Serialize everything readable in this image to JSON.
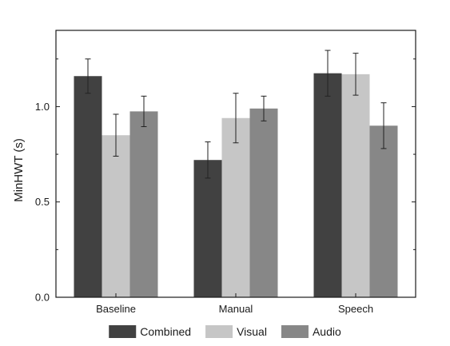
{
  "chart_data": {
    "type": "bar",
    "categories": [
      "Baseline",
      "Manual",
      "Speech"
    ],
    "series": [
      {
        "name": "Combined",
        "color": "#414141",
        "values": [
          1.16,
          0.72,
          1.175
        ],
        "errors": [
          0.09,
          0.095,
          0.12
        ]
      },
      {
        "name": "Visual",
        "color": "#c6c6c6",
        "values": [
          0.85,
          0.94,
          1.17
        ],
        "errors": [
          0.11,
          0.13,
          0.11
        ]
      },
      {
        "name": "Audio",
        "color": "#878787",
        "values": [
          0.975,
          0.99,
          0.9
        ],
        "errors": [
          0.08,
          0.065,
          0.12
        ]
      }
    ],
    "xlabel": "",
    "ylabel": "MinHWT (s)",
    "ylim": [
      0,
      1.4
    ],
    "yticks": [
      {
        "value": 0,
        "label": "0.0"
      },
      {
        "value": 0.5,
        "label": "0.5"
      },
      {
        "value": 1.0,
        "label": "1.0"
      }
    ],
    "minor_yticks": [
      0.25,
      0.75,
      1.25
    ],
    "grid": false,
    "legend_position": "bottom"
  }
}
